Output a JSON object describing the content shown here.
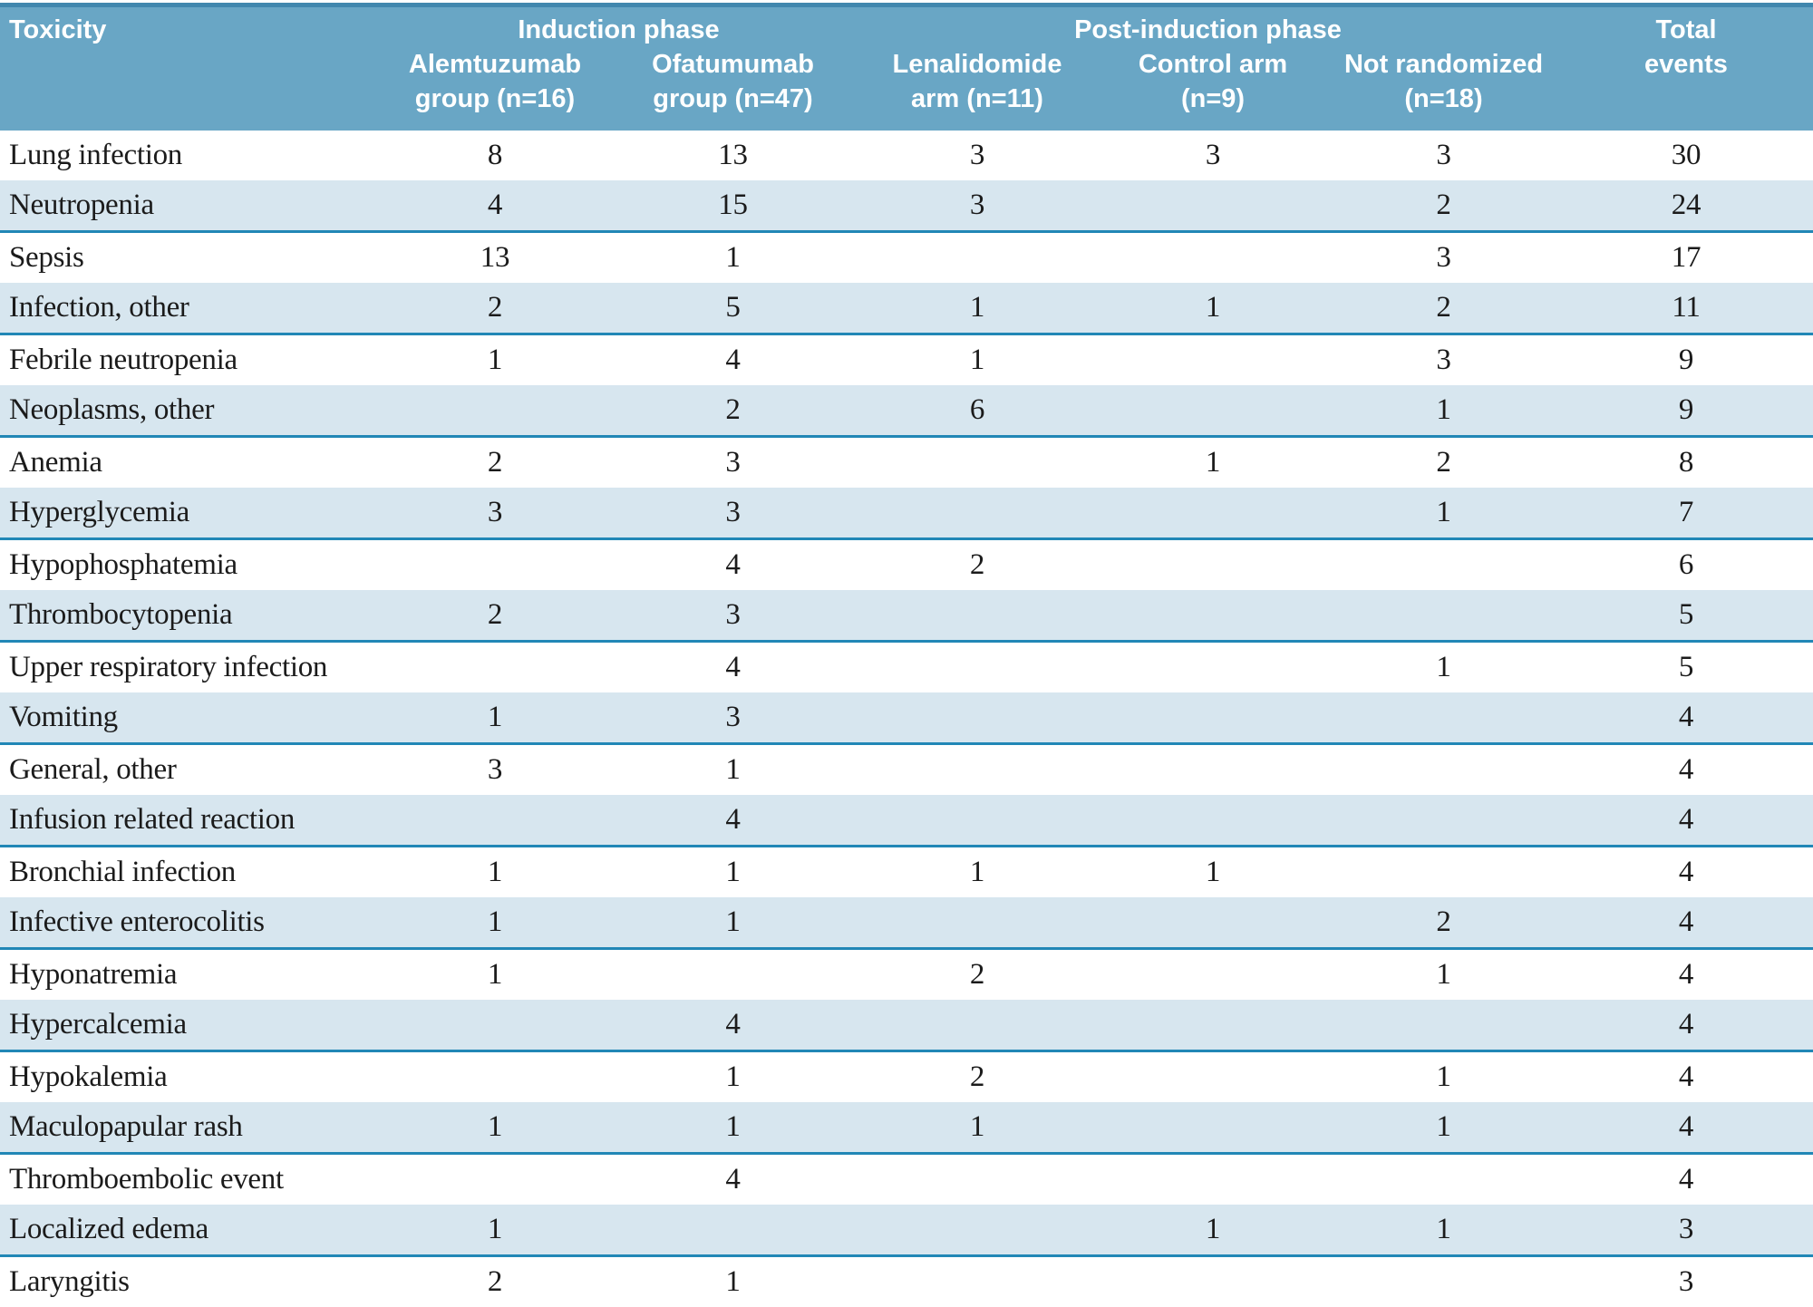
{
  "colors": {
    "header_background": "#69A6C5",
    "header_text": "#FFFFFF",
    "top_border_line": "#4187AE",
    "stripe_background": "#D7E6EF",
    "stripe_border_line": "#2187B6",
    "table_bottom_border": "#3D3D3D",
    "body_text": "#1B1B1B"
  },
  "table": {
    "header": {
      "toxicity": "Toxicity",
      "induction_phase": "Induction phase",
      "post_induction_phase": "Post-induction phase",
      "total_events": "Total\nevents",
      "subheaders": [
        "Alemtuzumab\ngroup (n=16)",
        "Ofatumumab\ngroup (n=47)",
        "Lenalidomide\narm (n=11)",
        "Control arm\n(n=9)",
        "Not randomized\n(n=18)"
      ]
    },
    "rows": [
      {
        "toxicity": "Lung infection",
        "values": [
          "8",
          "13",
          "3",
          "3",
          "3",
          "30"
        ]
      },
      {
        "toxicity": "Neutropenia",
        "values": [
          "4",
          "15",
          "3",
          "",
          "2",
          "24"
        ]
      },
      {
        "toxicity": "Sepsis",
        "values": [
          "13",
          "1",
          "",
          "",
          "3",
          "17"
        ]
      },
      {
        "toxicity": "Infection, other",
        "values": [
          "2",
          "5",
          "1",
          "1",
          "2",
          "11"
        ]
      },
      {
        "toxicity": "Febrile neutropenia",
        "values": [
          "1",
          "4",
          "1",
          "",
          "3",
          "9"
        ]
      },
      {
        "toxicity": "Neoplasms, other",
        "values": [
          "",
          "2",
          "6",
          "",
          "1",
          "9"
        ]
      },
      {
        "toxicity": "Anemia",
        "values": [
          "2",
          "3",
          "",
          "1",
          "2",
          "8"
        ]
      },
      {
        "toxicity": "Hyperglycemia",
        "values": [
          "3",
          "3",
          "",
          "",
          "1",
          "7"
        ]
      },
      {
        "toxicity": "Hypophosphatemia",
        "values": [
          "",
          "4",
          "2",
          "",
          "",
          "6"
        ]
      },
      {
        "toxicity": "Thrombocytopenia",
        "values": [
          "2",
          "3",
          "",
          "",
          "",
          "5"
        ]
      },
      {
        "toxicity": "Upper respiratory infection",
        "values": [
          "",
          "4",
          "",
          "",
          "1",
          "5"
        ]
      },
      {
        "toxicity": "Vomiting",
        "values": [
          "1",
          "3",
          "",
          "",
          "",
          "4"
        ]
      },
      {
        "toxicity": "General, other",
        "values": [
          "3",
          "1",
          "",
          "",
          "",
          "4"
        ]
      },
      {
        "toxicity": "Infusion related reaction",
        "values": [
          "",
          "4",
          "",
          "",
          "",
          "4"
        ]
      },
      {
        "toxicity": "Bronchial infection",
        "values": [
          "1",
          "1",
          "1",
          "1",
          "",
          "4"
        ]
      },
      {
        "toxicity": "Infective enterocolitis",
        "values": [
          "1",
          "1",
          "",
          "",
          "2",
          "4"
        ]
      },
      {
        "toxicity": "Hyponatremia",
        "values": [
          "1",
          "",
          "2",
          "",
          "1",
          "4"
        ]
      },
      {
        "toxicity": "Hypercalcemia",
        "values": [
          "",
          "4",
          "",
          "",
          "",
          "4"
        ]
      },
      {
        "toxicity": "Hypokalemia",
        "values": [
          "",
          "1",
          "2",
          "",
          "1",
          "4"
        ]
      },
      {
        "toxicity": "Maculopapular rash",
        "values": [
          "1",
          "1",
          "1",
          "",
          "1",
          "4"
        ]
      },
      {
        "toxicity": "Thromboembolic event",
        "values": [
          "",
          "4",
          "",
          "",
          "",
          "4"
        ]
      },
      {
        "toxicity": "Localized edema",
        "values": [
          "1",
          "",
          "",
          "1",
          "1",
          "3"
        ]
      },
      {
        "toxicity": "Laryngitis",
        "values": [
          "2",
          "1",
          "",
          "",
          "",
          "3"
        ]
      }
    ]
  }
}
